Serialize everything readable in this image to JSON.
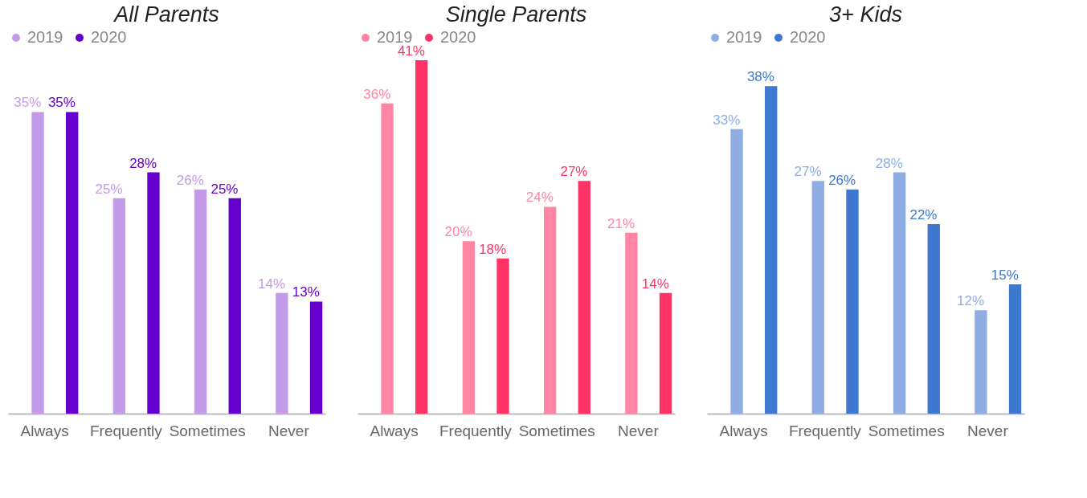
{
  "chart_data": [
    {
      "type": "bar",
      "title": "All Parents",
      "categories": [
        "Always",
        "Frequently",
        "Sometimes",
        "Never"
      ],
      "legend": "top",
      "series": [
        {
          "name": "2019",
          "color": "#c39be8",
          "values": [
            35,
            25,
            26,
            14
          ],
          "value_labels": [
            "35%",
            "25%",
            "26%",
            "14%"
          ]
        },
        {
          "name": "2020",
          "color": "#6600cc",
          "values": [
            35,
            28,
            25,
            13
          ],
          "value_labels": [
            "35%",
            "28%",
            "25%",
            "13%"
          ]
        }
      ]
    },
    {
      "type": "bar",
      "title": "Single Parents",
      "categories": [
        "Always",
        "Frequently",
        "Sometimes",
        "Never"
      ],
      "legend": "top",
      "series": [
        {
          "name": "2019",
          "color": "#ff85a2",
          "values": [
            36,
            20,
            24,
            21
          ],
          "value_labels": [
            "36%",
            "20%",
            "24%",
            "21%"
          ]
        },
        {
          "name": "2020",
          "color": "#ff3366",
          "values": [
            41,
            18,
            27,
            14
          ],
          "value_labels": [
            "41%",
            "18%",
            "27%",
            "14%"
          ]
        }
      ]
    },
    {
      "type": "bar",
      "title": "3+ Kids",
      "categories": [
        "Always",
        "Frequently",
        "Sometimes",
        "Never"
      ],
      "legend": "top",
      "series": [
        {
          "name": "2019",
          "color": "#8eaee3",
          "values": [
            33,
            27,
            28,
            12
          ],
          "value_labels": [
            "33%",
            "27%",
            "28%",
            "12%"
          ]
        },
        {
          "name": "2020",
          "color": "#3f78cf",
          "values": [
            38,
            26,
            22,
            15
          ],
          "value_labels": [
            "38%",
            "26%",
            "22%",
            "15%"
          ]
        }
      ]
    }
  ]
}
